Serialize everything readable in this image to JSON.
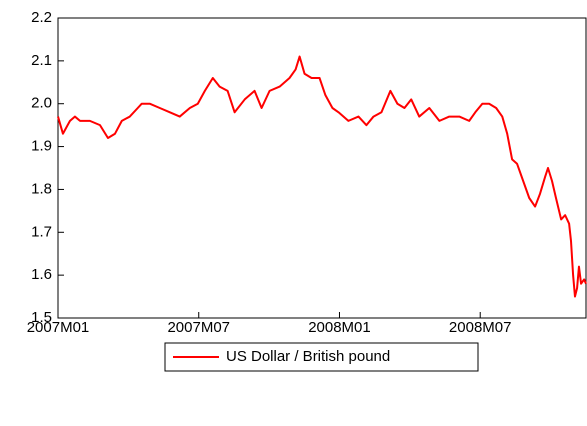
{
  "chart_data": {
    "type": "line",
    "x": [
      0,
      0.21,
      0.51,
      0.72,
      0.94,
      1.36,
      1.79,
      2.13,
      2.43,
      2.72,
      3.06,
      3.4,
      3.57,
      3.91,
      4.34,
      4.77,
      5.19,
      5.62,
      5.96,
      6.26,
      6.6,
      6.89,
      7.23,
      7.53,
      7.96,
      8.38,
      8.68,
      9.02,
      9.45,
      9.87,
      10.13,
      10.3,
      10.51,
      10.81,
      11.15,
      11.4,
      11.7,
      11.96,
      12.38,
      12.81,
      13.15,
      13.45,
      13.79,
      14.17,
      14.47,
      14.77,
      15.06,
      15.4,
      15.83,
      16.26,
      16.68,
      17.11,
      17.53,
      17.79,
      18.09,
      18.38,
      18.68,
      18.94,
      19.15,
      19.36,
      19.57,
      19.83,
      20.09,
      20.34,
      20.55,
      20.77,
      20.89,
      21.06,
      21.23,
      21.45,
      21.62,
      21.79,
      21.87,
      21.96,
      22.04,
      22.13,
      22.21,
      22.3,
      22.43,
      22.51
    ],
    "series": [
      {
        "name": "US Dollar / British pound",
        "color": "#ff0000",
        "values": [
          1.97,
          1.93,
          1.96,
          1.97,
          1.96,
          1.96,
          1.95,
          1.92,
          1.93,
          1.96,
          1.97,
          1.99,
          2.0,
          2.0,
          1.99,
          1.98,
          1.97,
          1.99,
          2.0,
          2.03,
          2.06,
          2.04,
          2.03,
          1.98,
          2.01,
          2.03,
          1.99,
          2.03,
          2.04,
          2.06,
          2.08,
          2.11,
          2.07,
          2.06,
          2.06,
          2.02,
          1.99,
          1.98,
          1.96,
          1.97,
          1.95,
          1.97,
          1.98,
          2.03,
          2.0,
          1.99,
          2.01,
          1.97,
          1.99,
          1.96,
          1.97,
          1.97,
          1.96,
          1.98,
          2.0,
          2.0,
          1.99,
          1.97,
          1.93,
          1.87,
          1.86,
          1.82,
          1.78,
          1.76,
          1.79,
          1.83,
          1.85,
          1.82,
          1.78,
          1.73,
          1.74,
          1.72,
          1.68,
          1.6,
          1.55,
          1.57,
          1.62,
          1.58,
          1.59,
          1.58
        ]
      }
    ],
    "xlim": [
      0,
      22.51
    ],
    "xticks": [
      {
        "value": 0,
        "label": "2007M01"
      },
      {
        "value": 6,
        "label": "2007M07"
      },
      {
        "value": 12,
        "label": "2008M01"
      },
      {
        "value": 18,
        "label": "2008M07"
      }
    ],
    "ylim": [
      1.5,
      2.2
    ],
    "yticks": [
      1.5,
      1.6,
      1.7,
      1.8,
      1.9,
      {
        "value": 2,
        "label": "2.0"
      },
      2.1,
      2.2
    ],
    "legend": "bottom"
  }
}
